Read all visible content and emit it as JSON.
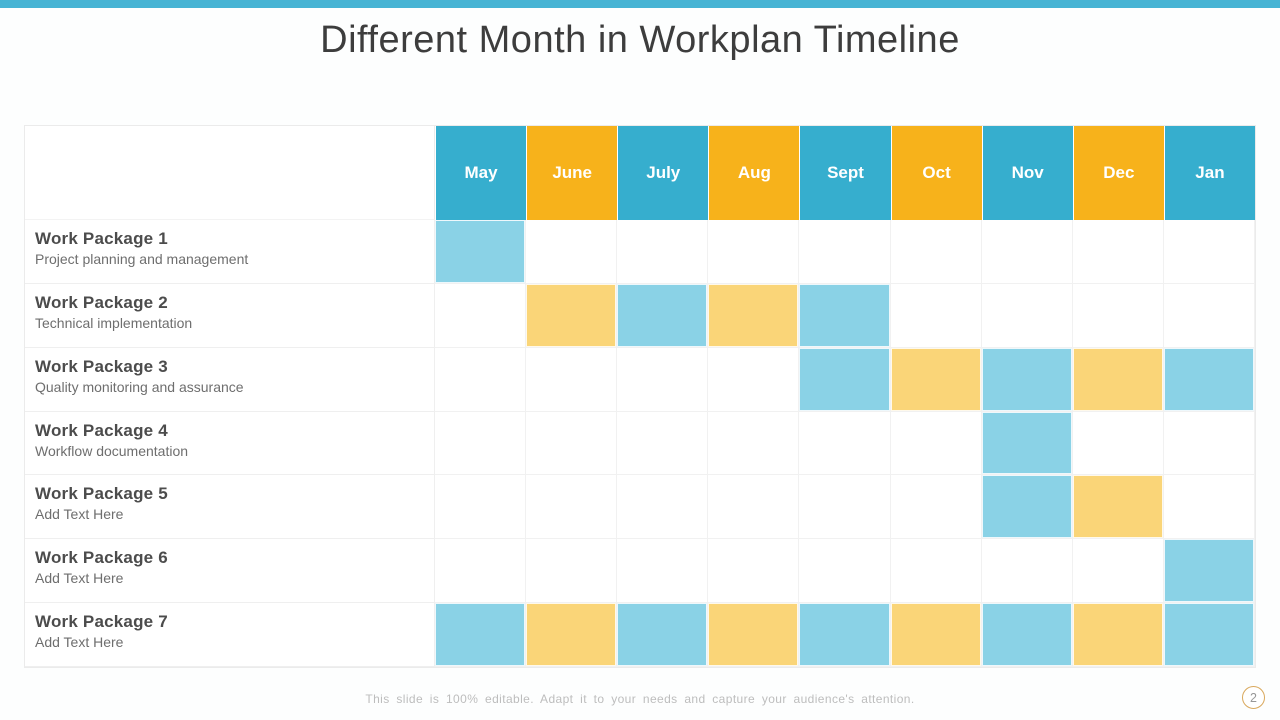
{
  "slide": {
    "title": "Different Month in Workplan Timeline",
    "footer_note": "This slide is 100% editable. Adapt it to your needs and capture your audience's attention.",
    "page_number": "2"
  },
  "colors": {
    "top_bar": "#47B4D4",
    "header_teal": "#36AECE",
    "header_orange": "#F7B21B",
    "cell_blue": "#8AD2E6",
    "cell_orange": "#FAD578",
    "grid_line": "#F1F1F1",
    "page_circle_border": "#D9A85C"
  },
  "chart_data": {
    "type": "table",
    "title": "Different Month in Workplan Timeline",
    "months": [
      "May",
      "June",
      "July",
      "Aug",
      "Sept",
      "Oct",
      "Nov",
      "Dec",
      "Jan"
    ],
    "header_color_pattern": [
      "teal",
      "orange",
      "teal",
      "orange",
      "teal",
      "orange",
      "teal",
      "orange",
      "teal"
    ],
    "cell_color_pattern": [
      "blue",
      "orange",
      "blue",
      "orange",
      "blue",
      "orange",
      "blue",
      "orange",
      "blue"
    ],
    "rows": [
      {
        "title": "Work Package 1",
        "subtitle": "Project planning and management",
        "active_months": [
          "May"
        ]
      },
      {
        "title": "Work Package 2",
        "subtitle": "Technical implementation",
        "active_months": [
          "June",
          "July",
          "Aug",
          "Sept"
        ]
      },
      {
        "title": "Work Package 3",
        "subtitle": "Quality monitoring and assurance",
        "active_months": [
          "Sept",
          "Oct",
          "Nov",
          "Dec",
          "Jan"
        ]
      },
      {
        "title": "Work Package 4",
        "subtitle": "Workflow documentation",
        "active_months": [
          "Nov"
        ]
      },
      {
        "title": "Work Package 5",
        "subtitle": "Add Text Here",
        "active_months": [
          "Nov",
          "Dec"
        ]
      },
      {
        "title": "Work Package 6",
        "subtitle": "Add Text Here",
        "active_months": [
          "Jan"
        ]
      },
      {
        "title": "Work Package 7",
        "subtitle": "Add Text Here",
        "active_months": [
          "May",
          "June",
          "July",
          "Aug",
          "Sept",
          "Oct",
          "Nov",
          "Dec",
          "Jan"
        ]
      }
    ]
  }
}
